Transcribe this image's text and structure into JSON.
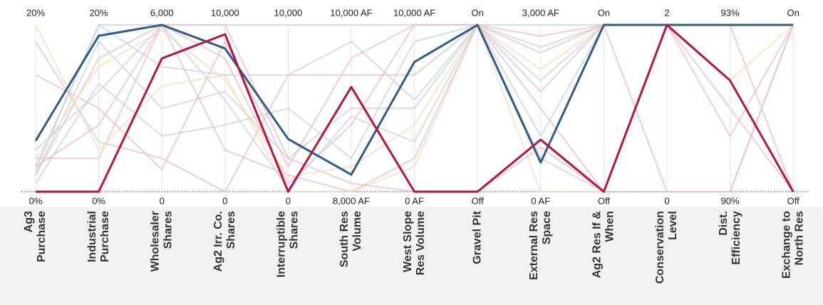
{
  "chart_data": {
    "type": "parallel",
    "axes": [
      {
        "name": [
          "Ag3",
          "Purchase"
        ],
        "min": {
          "value": 0,
          "label": "0%"
        },
        "max": {
          "value": 20,
          "label": "20%"
        }
      },
      {
        "name": [
          "Industrial",
          "Purchase"
        ],
        "min": {
          "value": 0,
          "label": "0%"
        },
        "max": {
          "value": 20,
          "label": "20%"
        }
      },
      {
        "name": [
          "Wholesaler",
          "Shares"
        ],
        "min": 0,
        "max": {
          "value": 6000,
          "label": "6,000"
        }
      },
      {
        "name": [
          "Ag2 Irr. Co.",
          "Shares"
        ],
        "min": 0,
        "max": {
          "value": 10000,
          "label": "10,000"
        }
      },
      {
        "name": [
          "Interruptible",
          "Shares"
        ],
        "min": 0,
        "max": {
          "value": 10000,
          "label": "10,000"
        }
      },
      {
        "name": [
          "South Res",
          "Volume"
        ],
        "min": {
          "value": 8000,
          "label": "8,000 AF"
        },
        "max": {
          "value": 10000,
          "label": "10,000 AF"
        }
      },
      {
        "name": [
          "West Slope",
          "Res Volume"
        ],
        "min": {
          "value": 0,
          "label": "0 AF"
        },
        "max": {
          "value": 10000,
          "label": "10,000 AF"
        }
      },
      {
        "name": [
          "Gravel Pit"
        ],
        "min": {
          "value": 0,
          "label": "Off"
        },
        "max": {
          "value": 1,
          "label": "On"
        }
      },
      {
        "name": [
          "External Res",
          "Space"
        ],
        "min": {
          "value": 0,
          "label": "0 AF"
        },
        "max": {
          "value": 3000,
          "label": "3,000 AF"
        }
      },
      {
        "name": [
          "Ag2 Res If &",
          "When"
        ],
        "min": {
          "value": 0,
          "label": "Off"
        },
        "max": {
          "value": 1,
          "label": "On"
        }
      },
      {
        "name": [
          "Conservation",
          "Level"
        ],
        "min": 0,
        "max": 2
      },
      {
        "name": [
          "Dist.",
          "Efficiency"
        ],
        "min": {
          "value": 90,
          "label": "90%"
        },
        "max": {
          "value": 93,
          "label": "93%"
        }
      },
      {
        "name": [
          "Exchange to",
          "North Res"
        ],
        "min": {
          "value": 0,
          "label": "Off"
        },
        "max": {
          "value": 1,
          "label": "On"
        }
      }
    ],
    "series": [
      {
        "color": "#c9d3dd",
        "values": [
          3,
          20,
          6000,
          10000,
          10000,
          10000,
          10000,
          1,
          3000,
          1,
          2,
          93,
          1
        ]
      },
      {
        "color": "#c9d3dd",
        "values": [
          2,
          18,
          3000,
          6000,
          2000,
          9000,
          5000,
          1,
          2000,
          1,
          2,
          93,
          1
        ]
      },
      {
        "color": "#eebcc8",
        "values": [
          18,
          6,
          1200,
          0,
          7000,
          9400,
          7000,
          1,
          1500,
          0,
          2,
          91,
          1
        ]
      },
      {
        "color": "#eebcc8",
        "values": [
          4,
          4,
          6000,
          2500,
          1000,
          8000,
          2000,
          1,
          2500,
          1,
          0,
          90,
          1
        ]
      },
      {
        "color": "#f3dfb8",
        "values": [
          20,
          5,
          3800,
          7000,
          0,
          8000,
          1500,
          1,
          0,
          0,
          2,
          93,
          1
        ]
      },
      {
        "color": "#eebcc8",
        "values": [
          3,
          8,
          6000,
          8000,
          500,
          8800,
          10000,
          1,
          1800,
          1,
          2,
          91.5,
          0
        ]
      },
      {
        "color": "#c9d3dd",
        "values": [
          1,
          13,
          2000,
          4000,
          5000,
          8400,
          9000,
          1,
          2600,
          1,
          2,
          93,
          1
        ]
      },
      {
        "color": "#eebcc8",
        "values": [
          2,
          16,
          6000,
          10000,
          2000,
          8100,
          0,
          0,
          800,
          0,
          0,
          90,
          1
        ]
      },
      {
        "color": "#c9d3dd",
        "values": [
          2.5,
          20,
          4500,
          7000,
          7000,
          9800,
          5500,
          1,
          1000,
          1,
          2,
          93,
          1
        ]
      },
      {
        "color": "#eebcc8",
        "values": [
          14,
          10,
          800,
          9000,
          1500,
          9600,
          10000,
          1,
          2800,
          1,
          2,
          93,
          0
        ]
      },
      {
        "color": "#f3dfb8",
        "values": [
          4,
          15,
          5800,
          6700,
          900,
          8300,
          4000,
          1,
          2200,
          1,
          2,
          92,
          1
        ]
      },
      {
        "color": "#c9d3dd",
        "values": [
          5,
          12,
          6000,
          5500,
          200,
          8900,
          3000,
          1,
          600,
          0,
          2,
          93,
          1
        ]
      },
      {
        "color": "#2f5b8a",
        "values": [
          6.1,
          18.7,
          6000,
          8590,
          3160,
          8205,
          7780,
          1,
          525,
          1,
          2,
          93,
          1
        ]
      },
      {
        "color": "#b5163f",
        "values": [
          0,
          0,
          4795,
          9440,
          0,
          9256,
          0,
          0,
          936,
          0,
          2,
          92,
          0
        ]
      }
    ]
  }
}
